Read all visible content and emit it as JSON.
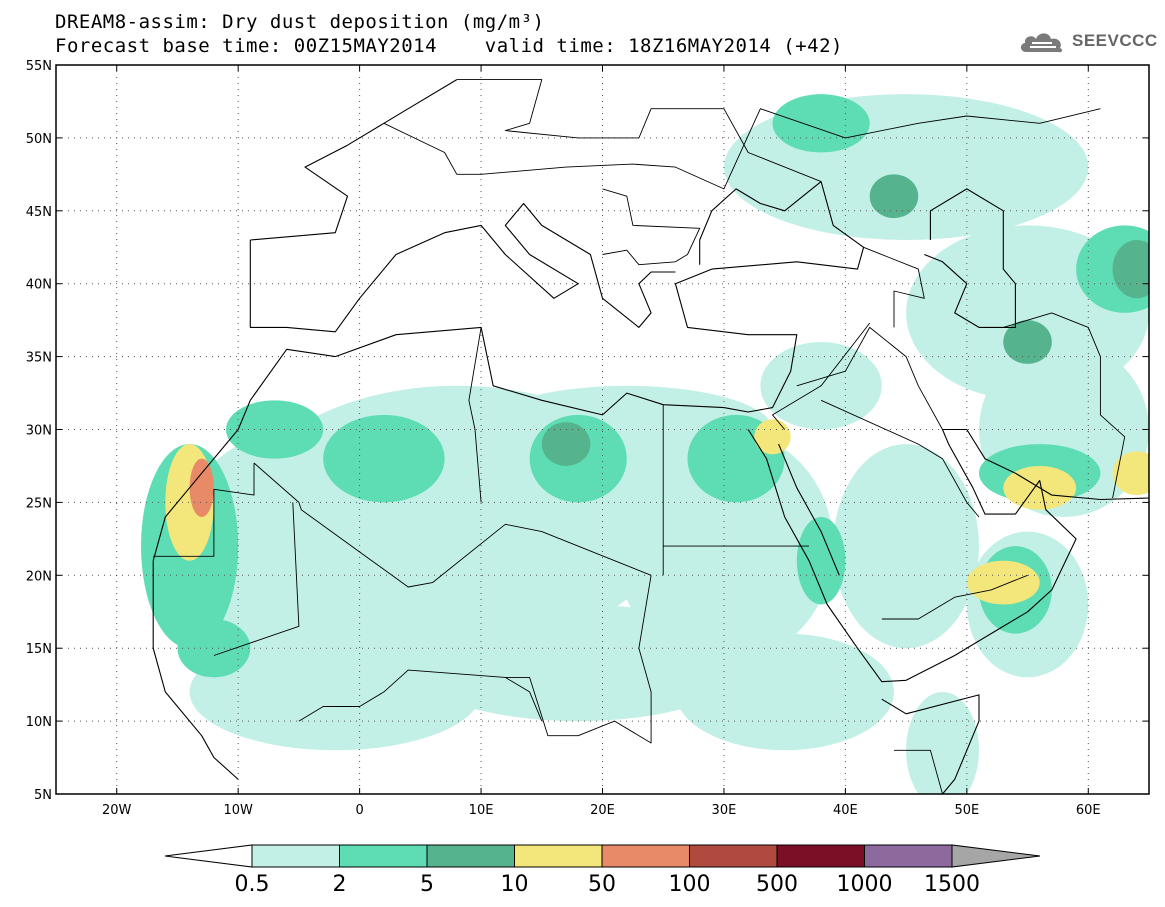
{
  "title": {
    "line1": "DREAM8-assim: Dry dust deposition (mg/m³)",
    "line2": "Forecast base time: 00Z15MAY2014    valid time: 18Z16MAY2014 (+42)"
  },
  "logo": {
    "text": "SEEVCCC",
    "icon": "cloud-icon"
  },
  "map": {
    "projection": "lat-lon",
    "lon_range": [
      -25,
      65
    ],
    "lat_range": [
      5,
      55
    ],
    "grid": "dotted",
    "lat_labels": [
      "55N",
      "50N",
      "45N",
      "40N",
      "35N",
      "30N",
      "25N",
      "20N",
      "15N",
      "10N",
      "5N"
    ],
    "lon_labels": [
      "20W",
      "10W",
      "0",
      "10E",
      "20E",
      "30E",
      "40E",
      "50E",
      "60E"
    ]
  },
  "colorbar": {
    "labels": [
      "0.5",
      "2",
      "5",
      "10",
      "50",
      "100",
      "500",
      "1000",
      "1500"
    ],
    "colors": [
      "#c2f0e6",
      "#5edcb4",
      "#55b48d",
      "#f3e77c",
      "#e88a68",
      "#b04a3e",
      "#7a0f25",
      "#8c6a9e"
    ],
    "under_color": "#ffffff",
    "over_color": "#a6a6a6"
  },
  "dust_regions": [
    {
      "level": 0,
      "lon": 8,
      "lat": 24,
      "rx": 18,
      "ry": 9
    },
    {
      "level": 0,
      "lon": -5,
      "lat": 22,
      "rx": 10,
      "ry": 8
    },
    {
      "level": 0,
      "lon": 30,
      "lat": 22,
      "rx": 9,
      "ry": 8
    },
    {
      "level": 0,
      "lon": 18,
      "lat": 14,
      "rx": 14,
      "ry": 4
    },
    {
      "level": 0,
      "lon": -2,
      "lat": 12,
      "rx": 12,
      "ry": 4
    },
    {
      "level": 0,
      "lon": 35,
      "lat": 12,
      "rx": 9,
      "ry": 4
    },
    {
      "level": 0,
      "lon": 22,
      "lat": 30,
      "rx": 12,
      "ry": 3
    },
    {
      "level": 0,
      "lon": 45,
      "lat": 22,
      "rx": 6,
      "ry": 7
    },
    {
      "level": 0,
      "lon": 55,
      "lat": 18,
      "rx": 5,
      "ry": 5
    },
    {
      "level": 0,
      "lon": 58,
      "lat": 30,
      "rx": 7,
      "ry": 6
    },
    {
      "level": 0,
      "lon": 38,
      "lat": 33,
      "rx": 5,
      "ry": 3
    },
    {
      "level": 0,
      "lon": 55,
      "lat": 38,
      "rx": 10,
      "ry": 6
    },
    {
      "level": 0,
      "lon": 45,
      "lat": 48,
      "rx": 15,
      "ry": 5
    },
    {
      "level": 0,
      "lon": 48,
      "lat": 8,
      "rx": 3,
      "ry": 4
    },
    {
      "level": 1,
      "lon": -14,
      "lat": 22,
      "rx": 4,
      "ry": 7
    },
    {
      "level": 1,
      "lon": 2,
      "lat": 28,
      "rx": 5,
      "ry": 3
    },
    {
      "level": 1,
      "lon": 18,
      "lat": 28,
      "rx": 4,
      "ry": 3
    },
    {
      "level": 1,
      "lon": 31,
      "lat": 28,
      "rx": 4,
      "ry": 3
    },
    {
      "level": 1,
      "lon": -7,
      "lat": 30,
      "rx": 4,
      "ry": 2
    },
    {
      "level": 1,
      "lon": 38,
      "lat": 51,
      "rx": 4,
      "ry": 2
    },
    {
      "level": 1,
      "lon": 63,
      "lat": 41,
      "rx": 4,
      "ry": 3
    },
    {
      "level": 1,
      "lon": 56,
      "lat": 27,
      "rx": 5,
      "ry": 2
    },
    {
      "level": 1,
      "lon": 54,
      "lat": 19,
      "rx": 3,
      "ry": 3
    },
    {
      "level": 1,
      "lon": 38,
      "lat": 21,
      "rx": 2,
      "ry": 3
    },
    {
      "level": 1,
      "lon": -12,
      "lat": 15,
      "rx": 3,
      "ry": 2
    },
    {
      "level": 2,
      "lon": 17,
      "lat": 29,
      "rx": 2,
      "ry": 1.5
    },
    {
      "level": 2,
      "lon": 44,
      "lat": 46,
      "rx": 2,
      "ry": 1.5
    },
    {
      "level": 2,
      "lon": 64,
      "lat": 41,
      "rx": 2,
      "ry": 2
    },
    {
      "level": 2,
      "lon": 55,
      "lat": 36,
      "rx": 2,
      "ry": 1.5
    },
    {
      "level": 3,
      "lon": -14,
      "lat": 25,
      "rx": 2,
      "ry": 4
    },
    {
      "level": 3,
      "lon": 56,
      "lat": 26,
      "rx": 3,
      "ry": 1.5
    },
    {
      "level": 3,
      "lon": 53,
      "lat": 19.5,
      "rx": 3,
      "ry": 1.5
    },
    {
      "level": 3,
      "lon": 34,
      "lat": 29.5,
      "rx": 1.5,
      "ry": 1.2
    },
    {
      "level": 3,
      "lon": 64,
      "lat": 27,
      "rx": 2,
      "ry": 1.5
    },
    {
      "level": 4,
      "lon": -13,
      "lat": 26,
      "rx": 1,
      "ry": 2
    }
  ],
  "coastlines": [
    [
      [
        -17,
        21
      ],
      [
        -16,
        24
      ],
      [
        -13,
        27
      ],
      [
        -10,
        30
      ],
      [
        -9,
        32
      ],
      [
        -6,
        35.5
      ],
      [
        -2,
        35
      ],
      [
        3,
        36.5
      ],
      [
        10,
        37
      ],
      [
        11,
        33
      ],
      [
        15,
        32
      ],
      [
        20,
        31
      ],
      [
        22,
        32.5
      ],
      [
        25,
        31.7
      ],
      [
        30,
        31.5
      ],
      [
        32,
        31.2
      ],
      [
        34,
        31.5
      ],
      [
        35.5,
        34
      ],
      [
        36,
        36.5
      ],
      [
        32,
        36.5
      ],
      [
        27,
        37
      ],
      [
        26,
        40
      ],
      [
        29,
        41
      ],
      [
        36,
        41.5
      ],
      [
        41,
        41
      ],
      [
        41.5,
        42.5
      ],
      [
        39,
        44
      ],
      [
        38,
        47
      ],
      [
        35,
        45
      ],
      [
        33,
        45.5
      ],
      [
        31,
        46.5
      ],
      [
        29,
        45
      ],
      [
        28,
        43
      ],
      [
        28,
        41.3
      ]
    ],
    [
      [
        -17,
        21
      ],
      [
        -17,
        15
      ],
      [
        -16,
        12
      ],
      [
        -13,
        9
      ],
      [
        -12,
        7.5
      ],
      [
        -10,
        6
      ]
    ],
    [
      [
        -9,
        43
      ],
      [
        -9,
        37
      ],
      [
        -6,
        37
      ],
      [
        -2,
        36.7
      ],
      [
        0,
        39
      ],
      [
        3,
        42
      ],
      [
        7,
        43.5
      ],
      [
        10,
        44
      ],
      [
        12,
        42
      ],
      [
        16,
        39
      ],
      [
        18,
        40
      ],
      [
        14,
        42
      ],
      [
        12,
        44
      ],
      [
        13.5,
        45.5
      ],
      [
        15,
        44
      ],
      [
        19,
        42
      ],
      [
        20,
        39
      ],
      [
        23,
        37
      ],
      [
        24,
        38
      ],
      [
        23,
        40
      ],
      [
        24,
        40.8
      ],
      [
        26,
        40.8
      ]
    ],
    [
      [
        -9,
        43
      ],
      [
        -2,
        43.5
      ],
      [
        -1,
        46
      ],
      [
        -4.5,
        48
      ],
      [
        -1,
        49.5
      ],
      [
        2,
        51
      ],
      [
        4,
        52
      ],
      [
        8,
        54
      ]
    ],
    [
      [
        32,
        30
      ],
      [
        33.5,
        28
      ],
      [
        35,
        24
      ],
      [
        37,
        21
      ],
      [
        38.5,
        18
      ],
      [
        41,
        15
      ],
      [
        43,
        12.7
      ],
      [
        45,
        12.8
      ],
      [
        49,
        14.5
      ],
      [
        52,
        16
      ],
      [
        55,
        17.5
      ],
      [
        57,
        19
      ],
      [
        59,
        22.5
      ],
      [
        56.5,
        24.5
      ],
      [
        56,
        26.5
      ],
      [
        54,
        24.2
      ],
      [
        51.5,
        24.2
      ],
      [
        50.5,
        26
      ],
      [
        48.5,
        29
      ],
      [
        48,
        30
      ],
      [
        50,
        30
      ],
      [
        51.5,
        28
      ],
      [
        54,
        27
      ],
      [
        57,
        25.5
      ],
      [
        61,
        25.2
      ],
      [
        65,
        25.3
      ]
    ],
    [
      [
        34.5,
        29
      ],
      [
        35,
        28
      ],
      [
        36,
        26
      ],
      [
        38,
        23
      ],
      [
        39.5,
        20
      ]
    ],
    [
      [
        43,
        11.5
      ],
      [
        45,
        10.5
      ],
      [
        51,
        11.8
      ],
      [
        51,
        10
      ],
      [
        49,
        6
      ],
      [
        48,
        5
      ]
    ],
    [
      [
        46.5,
        42
      ],
      [
        48,
        41.5
      ],
      [
        50,
        40
      ],
      [
        49,
        38
      ],
      [
        51,
        37
      ],
      [
        54,
        37
      ],
      [
        54,
        40
      ],
      [
        53,
        41
      ],
      [
        53,
        45
      ],
      [
        50,
        46.5
      ],
      [
        47,
        45
      ],
      [
        47,
        43
      ]
    ]
  ],
  "borders": [
    [
      [
        -8.7,
        27.7
      ],
      [
        -8.7,
        25.5
      ],
      [
        -12,
        25.9
      ],
      [
        -12,
        21.3
      ],
      [
        -17,
        21.3
      ]
    ],
    [
      [
        -8.7,
        27.7
      ],
      [
        -5,
        25
      ],
      [
        -4.8,
        24.5
      ],
      [
        1,
        21
      ],
      [
        4,
        19.2
      ],
      [
        6,
        19.5
      ],
      [
        12,
        23.5
      ],
      [
        15,
        23
      ],
      [
        24,
        20
      ]
    ],
    [
      [
        -12,
        14.5
      ],
      [
        -5,
        16.5
      ],
      [
        -5.5,
        25
      ]
    ],
    [
      [
        10,
        37
      ],
      [
        9,
        32
      ],
      [
        9.5,
        30
      ],
      [
        10,
        25
      ]
    ],
    [
      [
        25,
        31.7
      ],
      [
        25,
        22
      ],
      [
        25,
        20
      ]
    ],
    [
      [
        25,
        22
      ],
      [
        37,
        22
      ]
    ],
    [
      [
        35,
        30
      ],
      [
        34,
        31
      ],
      [
        38,
        33
      ],
      [
        42,
        37.3
      ]
    ],
    [
      [
        36,
        33
      ],
      [
        40,
        34
      ],
      [
        42,
        37
      ],
      [
        45,
        35
      ],
      [
        46,
        33
      ],
      [
        48,
        30
      ]
    ],
    [
      [
        38,
        32
      ],
      [
        46,
        29
      ],
      [
        48,
        28
      ],
      [
        50,
        25
      ],
      [
        51,
        24
      ]
    ],
    [
      [
        43,
        17
      ],
      [
        46,
        17
      ],
      [
        49,
        18.5
      ],
      [
        52,
        19
      ],
      [
        55,
        20
      ]
    ],
    [
      [
        44,
        8
      ],
      [
        47,
        8
      ],
      [
        48,
        5
      ]
    ],
    [
      [
        2,
        51
      ],
      [
        7,
        49
      ],
      [
        8,
        47.5
      ],
      [
        10,
        47.5
      ],
      [
        17,
        48
      ],
      [
        22.5,
        48.2
      ],
      [
        26,
        48
      ],
      [
        30,
        46.5
      ],
      [
        33,
        52
      ],
      [
        40,
        50
      ],
      [
        46,
        51
      ],
      [
        50,
        51.5
      ],
      [
        56,
        51
      ],
      [
        61,
        52
      ]
    ],
    [
      [
        8,
        54
      ],
      [
        15,
        54
      ],
      [
        14,
        51
      ],
      [
        12,
        50.5
      ],
      [
        18,
        50
      ],
      [
        23,
        50
      ],
      [
        24,
        52
      ],
      [
        30,
        52
      ],
      [
        32,
        49
      ],
      [
        38,
        47
      ]
    ],
    [
      [
        20,
        42
      ],
      [
        22,
        42.3
      ],
      [
        23,
        41.3
      ],
      [
        26,
        41.5
      ],
      [
        27,
        42
      ],
      [
        28,
        43.8
      ],
      [
        22.5,
        44
      ],
      [
        22,
        46
      ],
      [
        20,
        46.5
      ]
    ],
    [
      [
        41.5,
        42.5
      ],
      [
        46,
        41
      ],
      [
        46.5,
        39
      ],
      [
        44,
        39.5
      ],
      [
        44,
        37
      ]
    ],
    [
      [
        53,
        37
      ],
      [
        57,
        38
      ],
      [
        60,
        37
      ],
      [
        61,
        35
      ],
      [
        61,
        31
      ],
      [
        63,
        29.5
      ],
      [
        62,
        25.3
      ]
    ],
    [
      [
        12,
        13
      ],
      [
        14,
        13
      ],
      [
        15.5,
        9
      ],
      [
        18,
        9
      ],
      [
        21,
        10
      ],
      [
        24,
        8.5
      ],
      [
        24,
        12
      ],
      [
        23,
        15
      ],
      [
        24,
        20
      ]
    ],
    [
      [
        -5,
        10
      ],
      [
        -3,
        11
      ],
      [
        0,
        11
      ],
      [
        2,
        12
      ],
      [
        4,
        13.5
      ],
      [
        12,
        13
      ],
      [
        14,
        12
      ],
      [
        15,
        10
      ]
    ]
  ]
}
